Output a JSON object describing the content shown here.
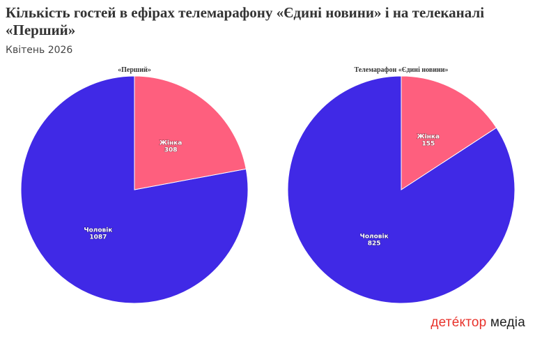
{
  "header": {
    "title": "Кількість гостей в ефірах телемарафону «Єдині новини» і на телеканалі «Перший»",
    "subtitle": "Квітень 2026"
  },
  "colors": {
    "man": "#4029e6",
    "woman": "#fe5f7e"
  },
  "chart_data": [
    {
      "type": "pie",
      "title": "«Перший»",
      "categories": [
        "Жінка",
        "Чоловік"
      ],
      "values": [
        308,
        1087
      ]
    },
    {
      "type": "pie",
      "title": "Телемарафон «Єдині новини»",
      "categories": [
        "Жінка",
        "Чоловік"
      ],
      "values": [
        155,
        825
      ]
    }
  ],
  "logo": {
    "part1": "детéктор",
    "part2": "медіа"
  }
}
